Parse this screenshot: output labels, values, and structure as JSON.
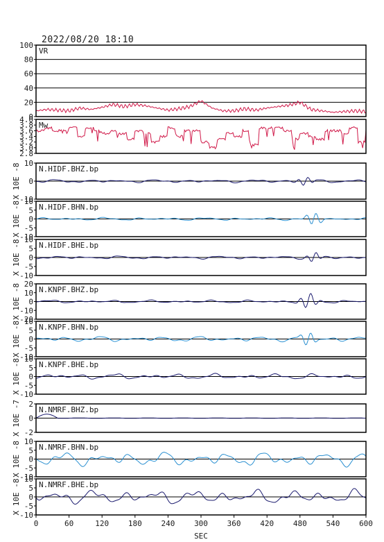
{
  "header": {
    "timestamp": "2022/08/20 18:10"
  },
  "xaxis": {
    "label": "SEC",
    "min": 0,
    "max": 600,
    "ticks": [
      "0",
      "60",
      "120",
      "180",
      "240",
      "300",
      "360",
      "420",
      "480",
      "540",
      "600"
    ]
  },
  "colors": {
    "dark_navy": "#1a1a6e",
    "light_blue": "#2a8fd0",
    "crimson": "#d01848",
    "frame": "#000000"
  },
  "panels": [
    {
      "label": "VR",
      "unit": "",
      "type": "vr",
      "color": "#d01848",
      "ticks": [
        "0",
        "20",
        "40",
        "60",
        "80",
        "100"
      ],
      "ylim": [
        0,
        100
      ],
      "hgrid": [
        20,
        40,
        60,
        80
      ]
    },
    {
      "label": "Mw",
      "unit": "",
      "type": "mw",
      "color": "#d01848",
      "ticks": [
        "2.8",
        "3.0",
        "3.2",
        "3.4",
        "3.6",
        "3.8",
        "4.0"
      ],
      "ylim": [
        2.8,
        4.0
      ],
      "hgrid": []
    },
    {
      "label": "N.HIDF.BHZ.bp",
      "unit": "X 10E -8",
      "type": "wave",
      "color": "#1a1a6e",
      "ticks": [
        "-10",
        "0",
        "10"
      ],
      "ylim": [
        -10,
        10
      ],
      "hgrid": [
        0
      ]
    },
    {
      "label": "N.HIDF.BHN.bp",
      "unit": "X 10E -8",
      "type": "wave",
      "color": "#2a8fd0",
      "ticks": [
        "-10",
        "-5",
        "0",
        "5",
        "10"
      ],
      "ylim": [
        -10,
        10
      ],
      "hgrid": [
        0
      ]
    },
    {
      "label": "N.HIDF.BHE.bp",
      "unit": "X 10E -8",
      "type": "wave",
      "color": "#1a1a6e",
      "ticks": [
        "-10",
        "-5",
        "0",
        "5",
        "10"
      ],
      "ylim": [
        -10,
        10
      ],
      "hgrid": [
        0
      ]
    },
    {
      "label": "N.KNPF.BHZ.bp",
      "unit": "X 10E -8",
      "type": "wave",
      "color": "#1a1a6e",
      "ticks": [
        "-20",
        "-10",
        "0",
        "10",
        "20"
      ],
      "ylim": [
        -20,
        20
      ],
      "hgrid": [
        0
      ]
    },
    {
      "label": "N.KNPF.BHN.bp",
      "unit": "X 10E -8",
      "type": "wave",
      "color": "#2a8fd0",
      "ticks": [
        "-10",
        "-5",
        "0",
        "5",
        "10"
      ],
      "ylim": [
        -10,
        10
      ],
      "hgrid": [
        0
      ]
    },
    {
      "label": "N.KNPF.BHE.bp",
      "unit": "X 10E -8",
      "type": "wave",
      "color": "#1a1a6e",
      "ticks": [
        "-10",
        "-5",
        "0",
        "5",
        "10"
      ],
      "ylim": [
        -10,
        10
      ],
      "hgrid": [
        0
      ]
    },
    {
      "label": "N.NMRF.BHZ.bp",
      "unit": "X 10E -7",
      "type": "wave",
      "color": "#1a1a6e",
      "ticks": [
        "-2",
        "0",
        "2"
      ],
      "ylim": [
        -2.5,
        2.5
      ],
      "hgrid": [
        0
      ]
    },
    {
      "label": "N.NMRF.BHN.bp",
      "unit": "X 10E -8",
      "type": "wave",
      "color": "#2a8fd0",
      "ticks": [
        "-10",
        "-5",
        "0",
        "5",
        "10"
      ],
      "ylim": [
        -10,
        10
      ],
      "hgrid": [
        0
      ]
    },
    {
      "label": "N.NMRF.BHE.bp",
      "unit": "X 10E -8",
      "type": "wave",
      "color": "#1a1a6e",
      "ticks": [
        "-10",
        "-5",
        "0",
        "5",
        "10"
      ],
      "ylim": [
        -10,
        10
      ],
      "hgrid": [
        0
      ]
    }
  ],
  "chart_data": {
    "type": "line",
    "x_range": [
      0,
      600
    ],
    "vr_series": {
      "name": "VR",
      "x": [
        0,
        20,
        40,
        60,
        80,
        100,
        120,
        140,
        160,
        180,
        200,
        220,
        240,
        260,
        280,
        300,
        320,
        340,
        360,
        380,
        400,
        420,
        440,
        460,
        480,
        500,
        520,
        540,
        560,
        580,
        600
      ],
      "values": [
        8,
        10,
        9,
        8,
        12,
        10,
        13,
        17,
        14,
        17,
        15,
        12,
        9,
        11,
        14,
        22,
        12,
        8,
        8,
        11,
        9,
        12,
        14,
        16,
        20,
        10,
        8,
        6,
        7,
        8,
        7
      ]
    },
    "mw_series": {
      "name": "Mw",
      "x": [
        0,
        15,
        30,
        45,
        60,
        75,
        90,
        105,
        120,
        135,
        150,
        165,
        180,
        195,
        210,
        225,
        240,
        255,
        270,
        285,
        300,
        315,
        330,
        345,
        360,
        375,
        390,
        405,
        420,
        435,
        450,
        465,
        480,
        495,
        510,
        525,
        540,
        555,
        570,
        585,
        600
      ],
      "values": [
        3.6,
        3.7,
        3.6,
        3.6,
        3.7,
        3.4,
        3.7,
        3.6,
        3.5,
        3.6,
        3.5,
        3.3,
        3.6,
        3.5,
        3.2,
        3.4,
        3.7,
        3.4,
        3.6,
        3.6,
        3.2,
        3.0,
        3.3,
        3.5,
        3.4,
        3.6,
        3.1,
        3.7,
        3.7,
        3.7,
        3.6,
        3.3,
        3.5,
        3.4,
        3.3,
        3.6,
        3.6,
        3.5,
        3.7,
        3.2,
        3.6
      ]
    }
  }
}
